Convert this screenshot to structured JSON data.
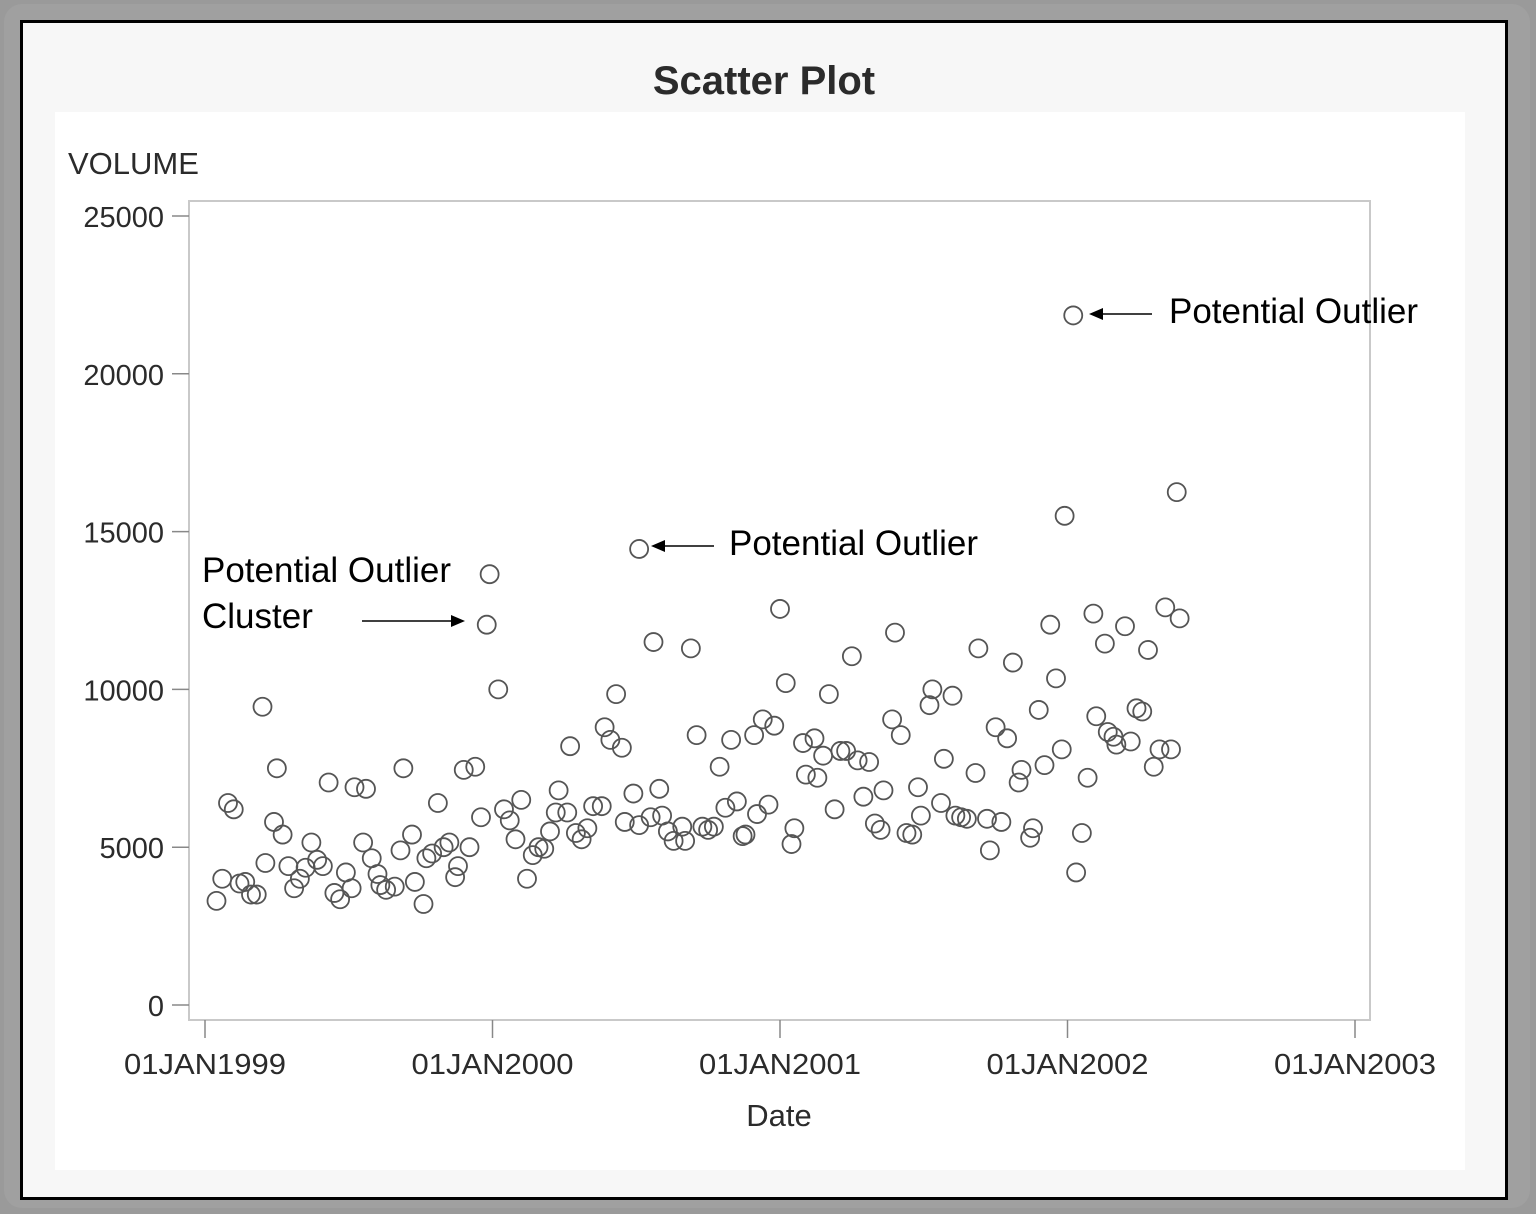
{
  "chart_data": {
    "type": "scatter",
    "title": "Scatter Plot",
    "xlabel": "Date",
    "ylabel": "VOLUME",
    "ylim": [
      0,
      25000
    ],
    "xlim": [
      "01JAN1999",
      "01JAN2003"
    ],
    "yticks": [
      0,
      5000,
      10000,
      15000,
      20000,
      25000
    ],
    "yticklabels": [
      "0",
      "5000",
      "10000",
      "15000",
      "20000",
      "25000"
    ],
    "xticks": [
      1999,
      2000,
      2001,
      2002,
      2003
    ],
    "xticklabels": [
      "01JAN1999",
      "01JAN2000",
      "01JAN2001",
      "01JAN2002",
      "01JAN2003"
    ],
    "grid": false,
    "legend": null,
    "marker": "open-circle",
    "x_units": "fractional year",
    "points": [
      [
        1999.04,
        3300
      ],
      [
        1999.06,
        4000
      ],
      [
        1999.08,
        6400
      ],
      [
        1999.1,
        6200
      ],
      [
        1999.12,
        3850
      ],
      [
        1999.14,
        3900
      ],
      [
        1999.16,
        3500
      ],
      [
        1999.18,
        3500
      ],
      [
        1999.2,
        9450
      ],
      [
        1999.21,
        4500
      ],
      [
        1999.24,
        5800
      ],
      [
        1999.25,
        7500
      ],
      [
        1999.27,
        5400
      ],
      [
        1999.29,
        4400
      ],
      [
        1999.31,
        3700
      ],
      [
        1999.33,
        4000
      ],
      [
        1999.35,
        4350
      ],
      [
        1999.37,
        5150
      ],
      [
        1999.39,
        4600
      ],
      [
        1999.41,
        4400
      ],
      [
        1999.43,
        7050
      ],
      [
        1999.45,
        3550
      ],
      [
        1999.47,
        3350
      ],
      [
        1999.49,
        4200
      ],
      [
        1999.51,
        3700
      ],
      [
        1999.52,
        6900
      ],
      [
        1999.55,
        5150
      ],
      [
        1999.56,
        6850
      ],
      [
        1999.58,
        4650
      ],
      [
        1999.6,
        4150
      ],
      [
        1999.61,
        3800
      ],
      [
        1999.63,
        3650
      ],
      [
        1999.66,
        3750
      ],
      [
        1999.68,
        4900
      ],
      [
        1999.69,
        7500
      ],
      [
        1999.72,
        5400
      ],
      [
        1999.73,
        3900
      ],
      [
        1999.76,
        3200
      ],
      [
        1999.77,
        4650
      ],
      [
        1999.79,
        4800
      ],
      [
        1999.81,
        6400
      ],
      [
        1999.83,
        5000
      ],
      [
        1999.85,
        5150
      ],
      [
        1999.87,
        4050
      ],
      [
        1999.88,
        4400
      ],
      [
        1999.9,
        7450
      ],
      [
        1999.92,
        5000
      ],
      [
        1999.94,
        7550
      ],
      [
        1999.96,
        5950
      ],
      [
        1999.98,
        12050
      ],
      [
        1999.99,
        13650
      ],
      [
        2000.02,
        10000
      ],
      [
        2000.04,
        6200
      ],
      [
        2000.06,
        5850
      ],
      [
        2000.08,
        5250
      ],
      [
        2000.1,
        6500
      ],
      [
        2000.12,
        4000
      ],
      [
        2000.14,
        4750
      ],
      [
        2000.16,
        5000
      ],
      [
        2000.18,
        4950
      ],
      [
        2000.2,
        5500
      ],
      [
        2000.22,
        6100
      ],
      [
        2000.23,
        6800
      ],
      [
        2000.26,
        6100
      ],
      [
        2000.27,
        8200
      ],
      [
        2000.29,
        5450
      ],
      [
        2000.31,
        5250
      ],
      [
        2000.33,
        5600
      ],
      [
        2000.35,
        6300
      ],
      [
        2000.38,
        6300
      ],
      [
        2000.39,
        8800
      ],
      [
        2000.41,
        8400
      ],
      [
        2000.43,
        9850
      ],
      [
        2000.45,
        8150
      ],
      [
        2000.46,
        5800
      ],
      [
        2000.49,
        6700
      ],
      [
        2000.51,
        5700
      ],
      [
        2000.51,
        14450
      ],
      [
        2000.55,
        5950
      ],
      [
        2000.56,
        11500
      ],
      [
        2000.58,
        6850
      ],
      [
        2000.59,
        6000
      ],
      [
        2000.61,
        5500
      ],
      [
        2000.63,
        5200
      ],
      [
        2000.66,
        5650
      ],
      [
        2000.67,
        5200
      ],
      [
        2000.69,
        11300
      ],
      [
        2000.71,
        8550
      ],
      [
        2000.73,
        5650
      ],
      [
        2000.75,
        5550
      ],
      [
        2000.77,
        5650
      ],
      [
        2000.79,
        7550
      ],
      [
        2000.81,
        6250
      ],
      [
        2000.83,
        8400
      ],
      [
        2000.85,
        6450
      ],
      [
        2000.87,
        5350
      ],
      [
        2000.88,
        5400
      ],
      [
        2000.91,
        8550
      ],
      [
        2000.92,
        6050
      ],
      [
        2000.94,
        9050
      ],
      [
        2000.96,
        6350
      ],
      [
        2000.98,
        8850
      ],
      [
        2001.0,
        12550
      ],
      [
        2001.02,
        10200
      ],
      [
        2001.04,
        5100
      ],
      [
        2001.05,
        5600
      ],
      [
        2001.08,
        8300
      ],
      [
        2001.09,
        7300
      ],
      [
        2001.12,
        8450
      ],
      [
        2001.13,
        7200
      ],
      [
        2001.15,
        7900
      ],
      [
        2001.17,
        9850
      ],
      [
        2001.19,
        6200
      ],
      [
        2001.21,
        8050
      ],
      [
        2001.23,
        8050
      ],
      [
        2001.25,
        11050
      ],
      [
        2001.27,
        7750
      ],
      [
        2001.29,
        6600
      ],
      [
        2001.31,
        7700
      ],
      [
        2001.33,
        5750
      ],
      [
        2001.35,
        5550
      ],
      [
        2001.36,
        6800
      ],
      [
        2001.39,
        9050
      ],
      [
        2001.4,
        11800
      ],
      [
        2001.42,
        8550
      ],
      [
        2001.44,
        5450
      ],
      [
        2001.46,
        5400
      ],
      [
        2001.48,
        6900
      ],
      [
        2001.49,
        6000
      ],
      [
        2001.52,
        9500
      ],
      [
        2001.53,
        10000
      ],
      [
        2001.56,
        6400
      ],
      [
        2001.57,
        7800
      ],
      [
        2001.6,
        9800
      ],
      [
        2001.61,
        6000
      ],
      [
        2001.63,
        5950
      ],
      [
        2001.65,
        5900
      ],
      [
        2001.68,
        7350
      ],
      [
        2001.69,
        11300
      ],
      [
        2001.72,
        5900
      ],
      [
        2001.73,
        4900
      ],
      [
        2001.75,
        8800
      ],
      [
        2001.77,
        5800
      ],
      [
        2001.79,
        8450
      ],
      [
        2001.81,
        10850
      ],
      [
        2001.83,
        7050
      ],
      [
        2001.84,
        7450
      ],
      [
        2001.87,
        5300
      ],
      [
        2001.88,
        5600
      ],
      [
        2001.9,
        9350
      ],
      [
        2001.92,
        7600
      ],
      [
        2001.94,
        12050
      ],
      [
        2001.96,
        10350
      ],
      [
        2001.98,
        8100
      ],
      [
        2001.99,
        15500
      ],
      [
        2002.02,
        21850
      ],
      [
        2002.03,
        4200
      ],
      [
        2002.05,
        5450
      ],
      [
        2002.07,
        7200
      ],
      [
        2002.09,
        12400
      ],
      [
        2002.1,
        9150
      ],
      [
        2002.13,
        11450
      ],
      [
        2002.14,
        8650
      ],
      [
        2002.16,
        8500
      ],
      [
        2002.17,
        8250
      ],
      [
        2002.2,
        12000
      ],
      [
        2002.22,
        8350
      ],
      [
        2002.24,
        9400
      ],
      [
        2002.26,
        9300
      ],
      [
        2002.28,
        11250
      ],
      [
        2002.3,
        7550
      ],
      [
        2002.32,
        8100
      ],
      [
        2002.34,
        12600
      ],
      [
        2002.36,
        8100
      ],
      [
        2002.38,
        16250
      ],
      [
        2002.39,
        12250
      ]
    ],
    "annotations": [
      {
        "text": "Potential Outlier",
        "points_to": [
          2002.02,
          21850
        ],
        "arrow": "left"
      },
      {
        "text": "Potential Outlier",
        "points_to": [
          2000.51,
          14450
        ],
        "arrow": "left"
      },
      {
        "text": "Potential Outlier\nCluster",
        "points_to": [
          1999.98,
          12050
        ],
        "arrow": "right"
      }
    ]
  },
  "title": "Scatter Plot",
  "axis": {
    "y_label": "VOLUME",
    "x_label": "Date"
  },
  "annotations": {
    "outlier_top": "Potential Outlier",
    "outlier_mid": "Potential Outlier",
    "cluster_line1": "Potential Outlier",
    "cluster_line2": "Cluster"
  }
}
